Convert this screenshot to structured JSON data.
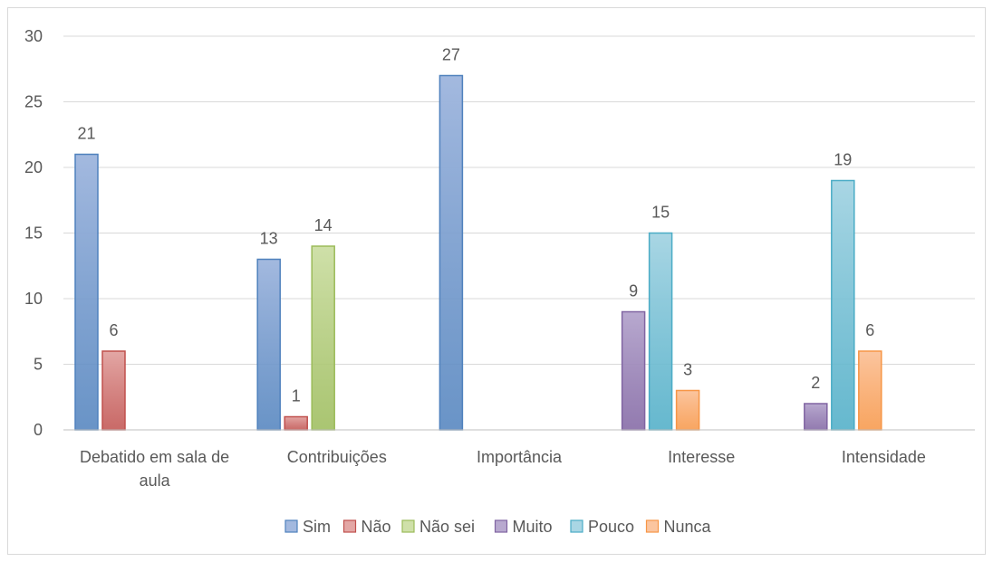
{
  "chart_data": {
    "type": "bar",
    "categories": [
      [
        "Debatido em sala de",
        "aula"
      ],
      [
        "Contribuições"
      ],
      [
        "Importância"
      ],
      [
        "Interesse"
      ],
      [
        "Intensidade"
      ]
    ],
    "ylim": [
      0,
      30
    ],
    "yticks": [
      0,
      5,
      10,
      15,
      20,
      25,
      30
    ],
    "grid": true,
    "legend_position": "bottom",
    "series": [
      {
        "name": "Sim",
        "color": "#4f81bd",
        "fill": "#a3b9df",
        "values": [
          21,
          13,
          27,
          null,
          null
        ]
      },
      {
        "name": "Não",
        "color": "#c0504d",
        "fill": "#e3a7a5",
        "values": [
          6,
          1,
          null,
          null,
          null
        ]
      },
      {
        "name": "Não sei",
        "color": "#9bbb59",
        "fill": "#cfe0a9",
        "values": [
          null,
          14,
          null,
          null,
          null
        ]
      },
      {
        "name": "Muito",
        "color": "#8064a2",
        "fill": "#b8a9cf",
        "values": [
          null,
          null,
          null,
          9,
          2
        ]
      },
      {
        "name": "Pouco",
        "color": "#4bacc6",
        "fill": "#a9d6e4",
        "values": [
          null,
          null,
          null,
          15,
          19
        ]
      },
      {
        "name": "Nunca",
        "color": "#f79646",
        "fill": "#fbc59f",
        "values": [
          null,
          null,
          null,
          3,
          6
        ]
      }
    ]
  }
}
